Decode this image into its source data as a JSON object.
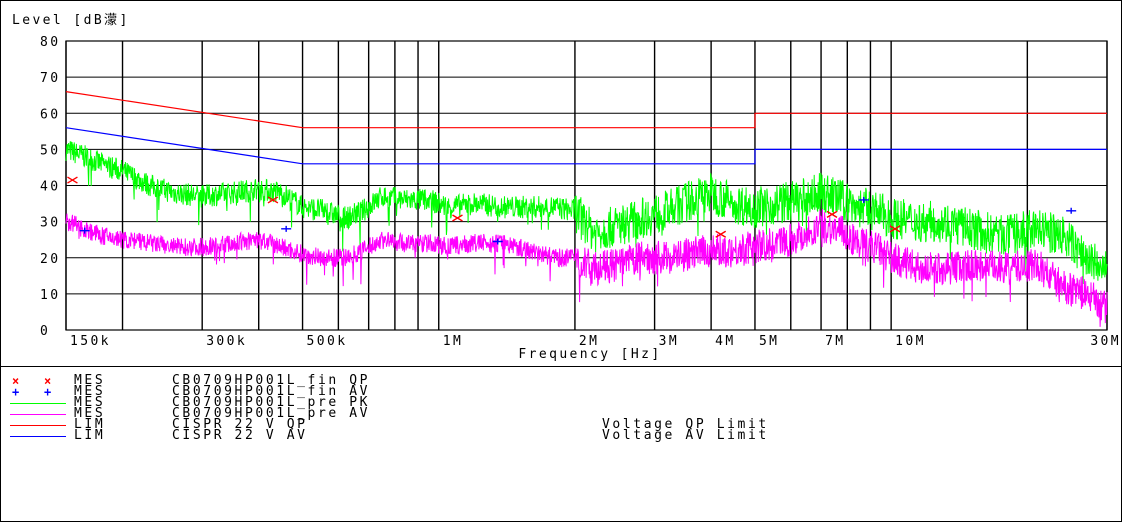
{
  "chart_data": {
    "type": "line",
    "title": "Level [dB濛]",
    "xlabel": "Frequency [Hz]",
    "ylabel": "",
    "x_scale": "log",
    "xlim": [
      150000,
      30000000
    ],
    "ylim": [
      0,
      80
    ],
    "grid": true,
    "y_ticks": [
      "0",
      "10",
      "20",
      "30",
      "40",
      "50",
      "60",
      "70",
      "80"
    ],
    "x_tick_labels": [
      {
        "label": "150k",
        "value": 150000
      },
      {
        "label": "300k",
        "value": 300000
      },
      {
        "label": "500k",
        "value": 500000
      },
      {
        "label": "1M",
        "value": 1000000
      },
      {
        "label": "2M",
        "value": 2000000
      },
      {
        "label": "3M",
        "value": 3000000
      },
      {
        "label": "4M",
        "value": 4000000
      },
      {
        "label": "5M",
        "value": 5000000
      },
      {
        "label": "7M",
        "value": 7000000
      },
      {
        "label": "10M",
        "value": 10000000
      },
      {
        "label": "30M",
        "value": 30000000
      }
    ],
    "minor_gridlines_hz": [
      150000,
      200000,
      300000,
      400000,
      500000,
      600000,
      700000,
      800000,
      900000,
      1000000,
      2000000,
      3000000,
      4000000,
      5000000,
      6000000,
      7000000,
      8000000,
      9000000,
      10000000,
      20000000,
      30000000
    ],
    "series": [
      {
        "name": "CISPR 22 V QP",
        "color": "#ff0000",
        "kind": "limit",
        "x": [
          150000,
          500000,
          500000,
          5000000,
          5000000,
          30000000
        ],
        "y": [
          66,
          56,
          56,
          56,
          60,
          60
        ]
      },
      {
        "name": "CISPR 22 V AV",
        "color": "#0000ff",
        "kind": "limit",
        "x": [
          150000,
          500000,
          500000,
          5000000,
          5000000,
          30000000
        ],
        "y": [
          56,
          46,
          46,
          46,
          50,
          50
        ]
      },
      {
        "name": "CB0709HP001L_pre PK",
        "color": "#00ff00",
        "kind": "trace",
        "x": [
          150000,
          165000,
          180000,
          200000,
          230000,
          260000,
          300000,
          350000,
          400000,
          450000,
          500000,
          560000,
          620000,
          680000,
          750000,
          850000,
          950000,
          1050000,
          1200000,
          1400000,
          1600000,
          1800000,
          2000000,
          2200000,
          2500000,
          2800000,
          3200000,
          3600000,
          4000000,
          4500000,
          5000000,
          5600000,
          6300000,
          7000000,
          7800000,
          8500000,
          9200000,
          10000000,
          11500000,
          13000000,
          15000000,
          18000000,
          21000000,
          24000000,
          27000000,
          30000000
        ],
        "y": [
          50,
          48,
          46,
          44,
          40,
          38,
          37,
          38,
          39,
          38,
          34,
          33,
          31,
          33,
          37,
          36,
          36,
          34,
          35,
          34,
          34,
          34,
          33,
          27,
          29,
          31,
          33,
          36,
          38,
          35,
          34,
          35,
          36,
          38,
          36,
          34,
          33,
          31,
          30,
          30,
          28,
          26,
          28,
          26,
          20,
          16
        ],
        "jitter": 3.2
      },
      {
        "name": "CB0709HP001L_pre AV",
        "color": "#ff00ff",
        "kind": "trace",
        "x": [
          150000,
          165000,
          180000,
          200000,
          230000,
          260000,
          300000,
          350000,
          400000,
          450000,
          500000,
          560000,
          620000,
          680000,
          750000,
          850000,
          950000,
          1050000,
          1200000,
          1400000,
          1600000,
          1800000,
          2000000,
          2200000,
          2500000,
          2800000,
          3200000,
          3600000,
          4000000,
          4500000,
          5000000,
          5600000,
          6300000,
          7000000,
          7800000,
          8500000,
          9200000,
          10000000,
          11500000,
          13000000,
          15000000,
          18000000,
          21000000,
          24000000,
          27000000,
          30000000
        ],
        "y": [
          30,
          28,
          26,
          25,
          24,
          23,
          23,
          24,
          25,
          23,
          21,
          20,
          20,
          22,
          25,
          24,
          24,
          23,
          24,
          24,
          22,
          20,
          20,
          17,
          18,
          20,
          20,
          21,
          22,
          22,
          23,
          24,
          26,
          29,
          27,
          24,
          23,
          20,
          17,
          17,
          18,
          17,
          18,
          12,
          10,
          6
        ],
        "jitter": 2.6
      },
      {
        "name": "CB0709HP001L_fin QP",
        "color": "#ff0000",
        "kind": "marker",
        "marker": "x",
        "x": [
          155000,
          430000,
          1100000,
          4200000,
          7400000,
          10200000
        ],
        "y": [
          41.5,
          36,
          31,
          26.5,
          32,
          28
        ]
      },
      {
        "name": "CB0709HP001L_fin AV",
        "color": "#0000ff",
        "kind": "marker",
        "marker": "+",
        "x": [
          165000,
          460000,
          1350000,
          8700000,
          25000000
        ],
        "y": [
          27.5,
          28,
          24.5,
          36,
          33
        ]
      }
    ]
  },
  "legend": [
    {
      "marker": "x",
      "type": "MES",
      "name": "CB0709HP001L_fin QP",
      "desc": "",
      "color": "#ff0000"
    },
    {
      "marker": "+",
      "type": "MES",
      "name": "CB0709HP001L_fin AV",
      "desc": "",
      "color": "#0000ff"
    },
    {
      "marker": "",
      "type": "MES",
      "name": "CB0709HP001L_pre PK",
      "desc": "",
      "color": "#00ff00"
    },
    {
      "marker": "",
      "type": "MES",
      "name": "CB0709HP001L_pre AV",
      "desc": "",
      "color": "#ff00ff"
    },
    {
      "marker": "",
      "type": "LIM",
      "name": "CISPR 22 V QP",
      "desc": "Voltage QP Limit",
      "color": "#ff0000"
    },
    {
      "marker": "",
      "type": "LIM",
      "name": "CISPR 22 V AV",
      "desc": "Voltage AV Limit",
      "color": "#0000ff"
    }
  ]
}
